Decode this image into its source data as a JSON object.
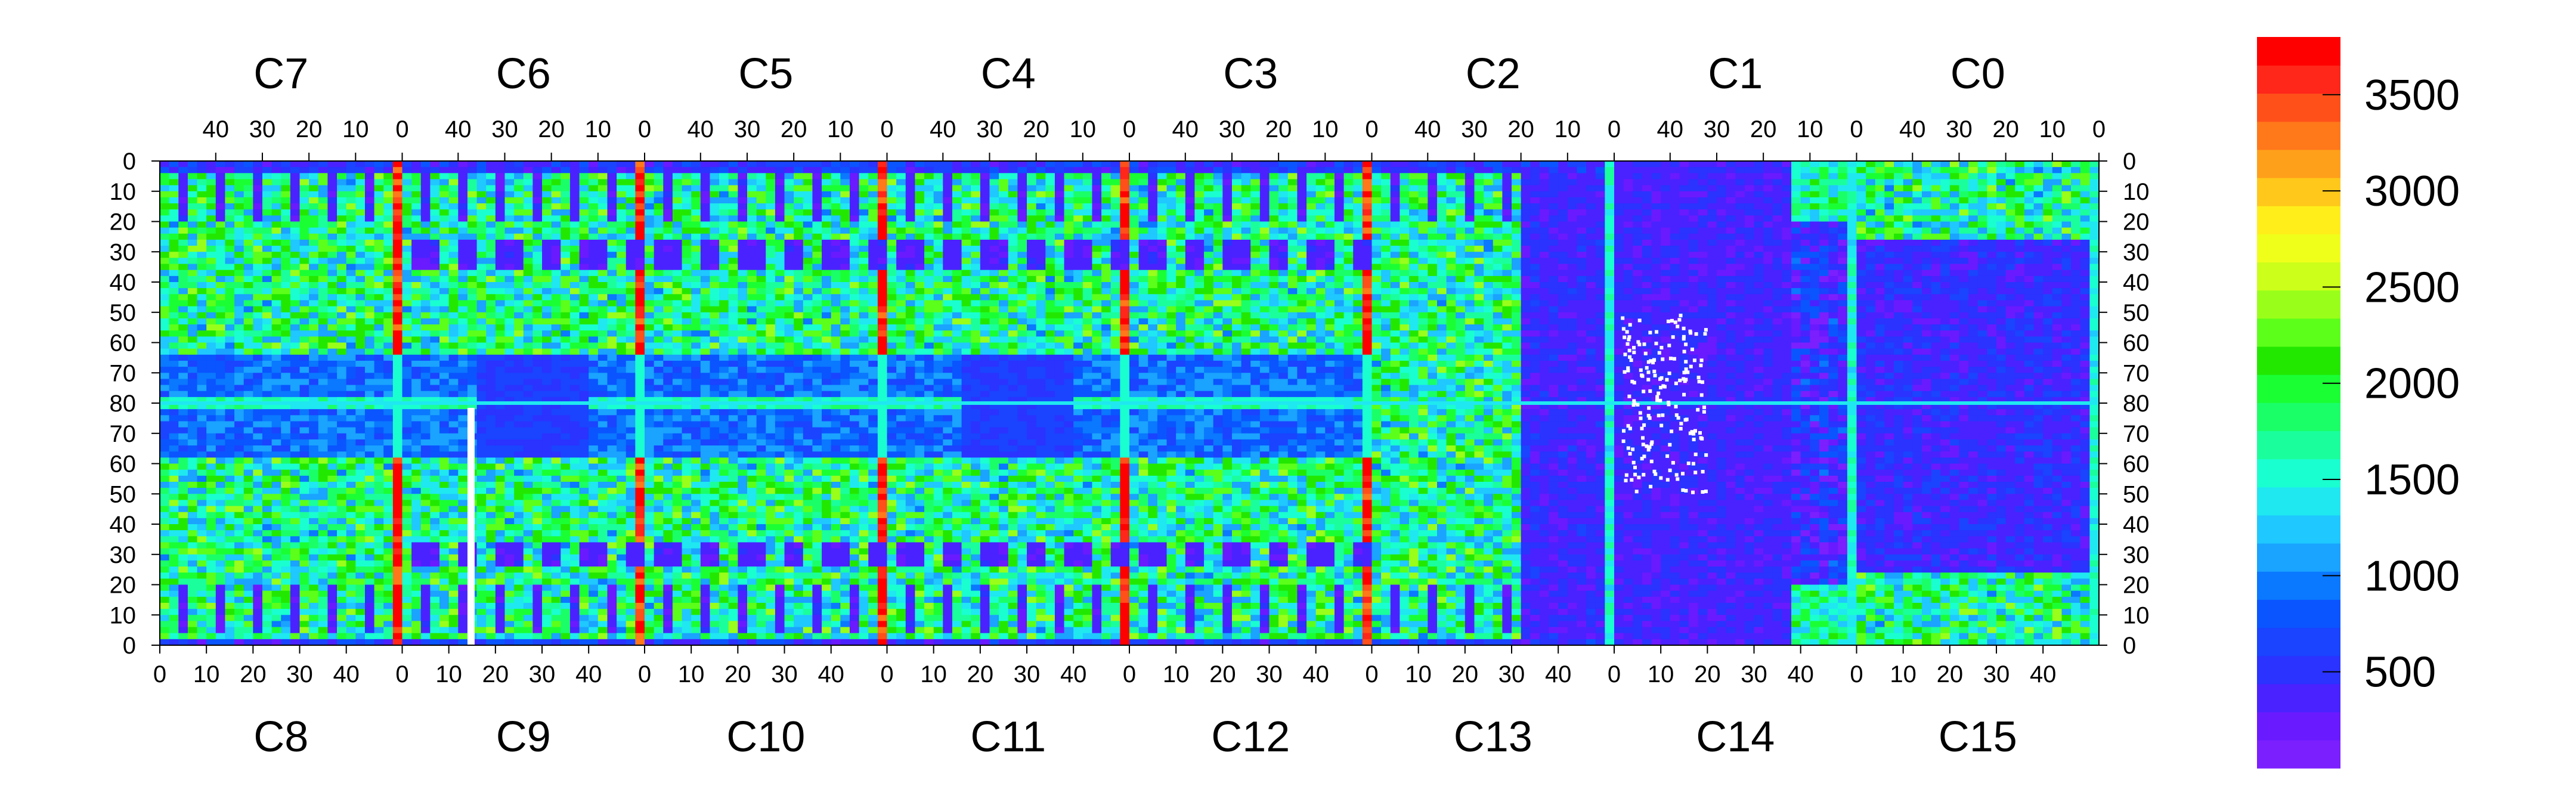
{
  "chart_data": {
    "type": "heatmap",
    "title": "",
    "xlabel": "",
    "ylabel": "",
    "top_chips": [
      "C7",
      "C6",
      "C5",
      "C4",
      "C3",
      "C2",
      "C1",
      "C0"
    ],
    "bottom_chips": [
      "C8",
      "C9",
      "C10",
      "C11",
      "C12",
      "C13",
      "C14",
      "C15"
    ],
    "top_column_ticks": [
      "40",
      "30",
      "20",
      "10",
      "0"
    ],
    "bottom_column_ticks": [
      "0",
      "10",
      "20",
      "30",
      "40"
    ],
    "columns_per_chip": 52,
    "top_half_rows": {
      "labels": [
        "0",
        "10",
        "20",
        "30",
        "40",
        "50",
        "60",
        "70",
        "80"
      ],
      "range": [
        0,
        80
      ],
      "direction": "downward"
    },
    "bottom_half_rows": {
      "labels": [
        "80",
        "70",
        "60",
        "50",
        "40",
        "30",
        "20",
        "10",
        "0"
      ],
      "range": [
        80,
        0
      ],
      "direction": "downward"
    },
    "color_scale": {
      "min": 0,
      "max": 3800,
      "tick_values": [
        500,
        1000,
        1500,
        2000,
        2500,
        3000,
        3500
      ],
      "tick_labels": [
        "500",
        "1000",
        "1500",
        "2000",
        "2500",
        "3000",
        "3500"
      ],
      "colors": [
        "#7b1fff",
        "#6a1aff",
        "#4a22ff",
        "#2a33ff",
        "#1a44ff",
        "#0a55ff",
        "#0a78ff",
        "#1aa3ff",
        "#1fc8ff",
        "#1fe8f0",
        "#1affd0",
        "#1aff9c",
        "#1aff68",
        "#1aff34",
        "#22e800",
        "#5cff1a",
        "#99ff1a",
        "#ccff1a",
        "#f0ff1a",
        "#ffee1a",
        "#ffc81a",
        "#ffa01a",
        "#ff781a",
        "#ff501a",
        "#ff261a",
        "#ff0000"
      ]
    },
    "bad_pixels_region": "chip C13/C14 center, rows 50-0-40",
    "background_level_estimate": 1700,
    "low_region_level_estimate": 250,
    "hot_column_level_estimate": 3500
  }
}
